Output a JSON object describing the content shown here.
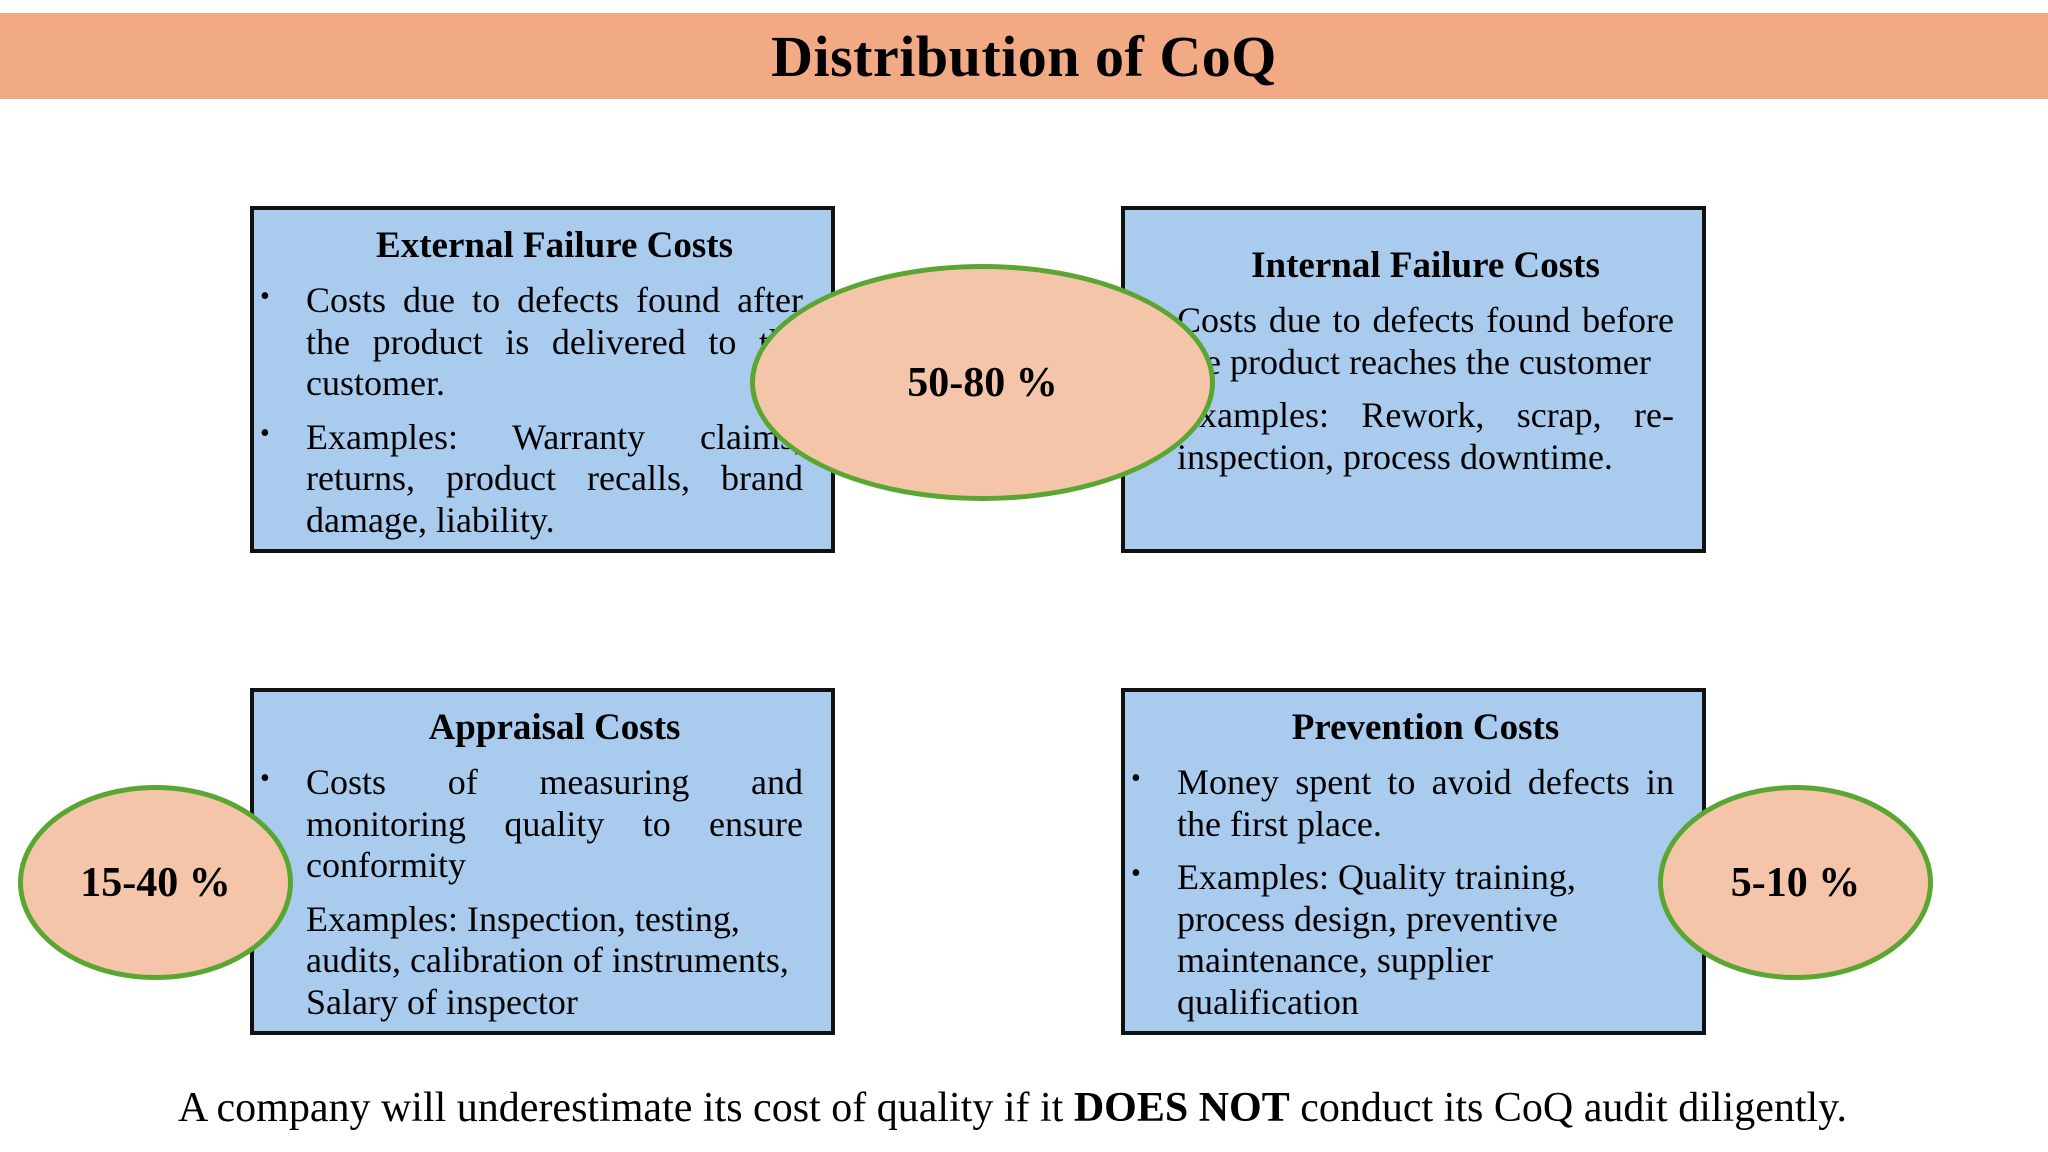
{
  "title": "Distribution of CoQ",
  "cards": {
    "external": {
      "heading": "External Failure Costs",
      "bullets": [
        "Costs due to defects found after the product is delivered to the customer.",
        "Examples: Warranty claims, returns, product recalls, brand damage, liability."
      ]
    },
    "internal": {
      "heading": "Internal Failure Costs",
      "bullets": [
        "Costs due to defects found before the product reaches the customer",
        "Examples: Rework, scrap, re-inspection, process downtime."
      ]
    },
    "appraisal": {
      "heading": "Appraisal Costs",
      "bullets": [
        "Costs of measuring and monitoring quality to ensure conformity",
        "Examples: Inspection, testing, audits, calibration of instruments, Salary of inspector"
      ]
    },
    "prevention": {
      "heading": "Prevention Costs",
      "bullets": [
        "Money spent to avoid defects in the first place.",
        "Examples: Quality training, process design, preventive maintenance, supplier qualification"
      ]
    }
  },
  "ovals": {
    "failure": "50-80 %",
    "appraisal": "15-40 %",
    "prevention": "5-10 %"
  },
  "footer": {
    "before": "A company will underestimate its cost of quality if it ",
    "emphasis": "DOES NOT",
    "after": " conduct its CoQ audit diligently."
  },
  "colors": {
    "title_bar": "#f2aa85",
    "card_fill": "#a9cbee",
    "oval_fill": "#f5c5a9",
    "oval_border": "#5aa632"
  }
}
